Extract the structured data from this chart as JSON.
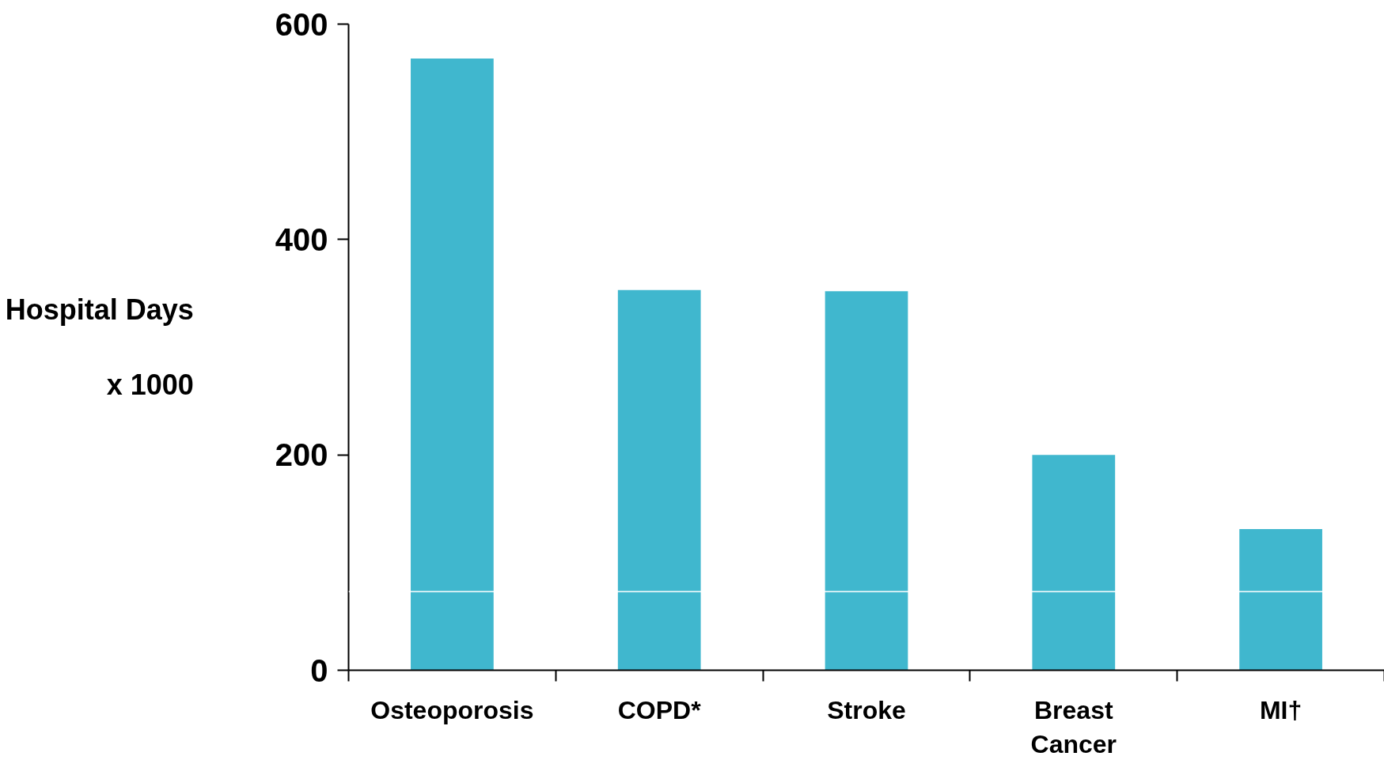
{
  "chart_data": {
    "type": "bar",
    "categories": [
      "Osteoporosis",
      "COPD*",
      "Stroke",
      "Breast Cancer",
      "MI†"
    ],
    "values": [
      568,
      353,
      352,
      200,
      131
    ],
    "color": "#40b7ce",
    "ylabel": "Hospital Days\nx 1000",
    "ylim": [
      0,
      600
    ],
    "yticks": [
      0,
      200,
      400,
      600
    ],
    "ref_lines": [
      {
        "axis": "y",
        "value": 73,
        "color": "#ffffff"
      }
    ],
    "grid": false
  }
}
